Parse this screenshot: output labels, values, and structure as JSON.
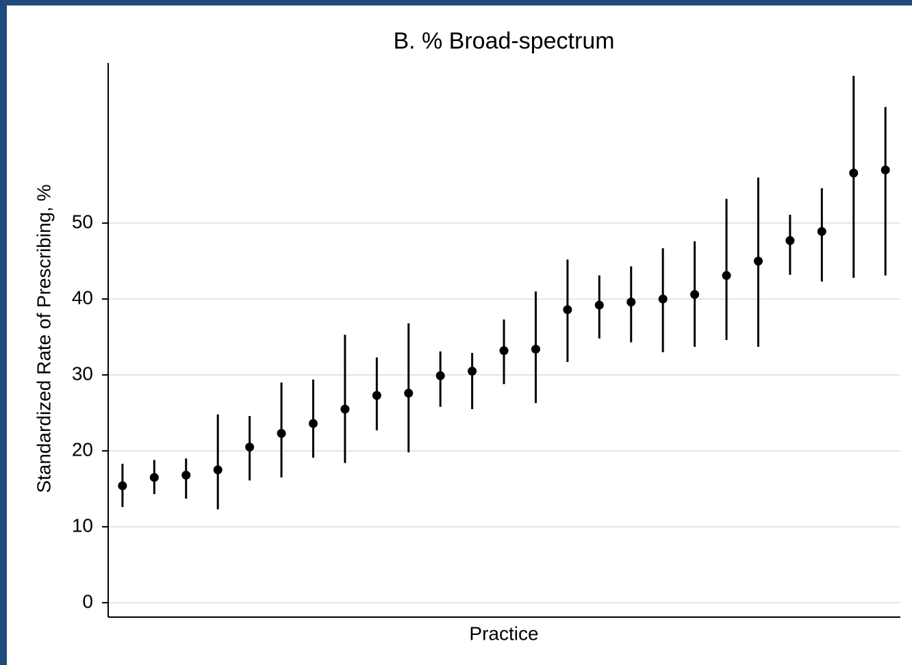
{
  "chart_data": {
    "type": "errorbar",
    "title": "B.  % Broad-spectrum",
    "x_label": "Practice",
    "y_label": "Standardized Rate of Prescribing, %",
    "x": [
      1,
      2,
      3,
      4,
      5,
      6,
      7,
      8,
      9,
      10,
      11,
      12,
      13,
      14,
      15,
      16,
      17,
      18,
      19,
      20,
      21,
      22,
      23,
      24,
      25
    ],
    "values": [
      15.4,
      16.5,
      16.8,
      17.5,
      20.5,
      22.3,
      23.6,
      25.5,
      27.3,
      27.6,
      29.9,
      30.5,
      33.2,
      33.4,
      38.6,
      39.2,
      39.6,
      40.0,
      40.6,
      43.1,
      45.0,
      47.7,
      48.9,
      56.6,
      57.0
    ],
    "lower": [
      12.6,
      14.3,
      13.7,
      12.3,
      16.1,
      16.5,
      19.1,
      18.4,
      22.7,
      19.8,
      25.8,
      25.5,
      28.8,
      26.3,
      31.7,
      34.8,
      34.3,
      33.0,
      33.7,
      34.6,
      33.7,
      43.2,
      42.3,
      42.8,
      43.1
    ],
    "upper": [
      18.3,
      18.8,
      19.0,
      24.8,
      24.6,
      29.0,
      29.4,
      35.3,
      32.3,
      36.8,
      33.1,
      32.9,
      37.3,
      41.0,
      45.2,
      43.1,
      44.3,
      46.7,
      47.6,
      53.2,
      56.0,
      51.1,
      54.6,
      69.4,
      65.3
    ],
    "color": "#000000",
    "xlim": [
      0.55,
      25.47
    ],
    "ylim": [
      -1.9,
      71.1
    ],
    "yticks": [
      0,
      10,
      20,
      30,
      40,
      50
    ],
    "grid": true
  }
}
